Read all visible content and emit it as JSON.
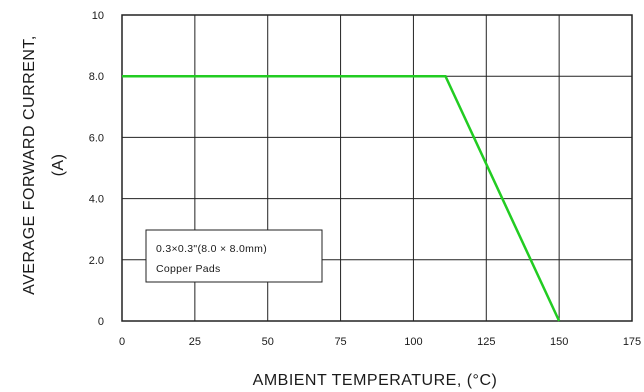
{
  "chart_data": {
    "type": "line",
    "title": "",
    "xlabel": "AMBIENT TEMPERATURE, (°C)",
    "ylabel_lines": [
      "AVERAGE FORWARD CURRENT,",
      "(A)"
    ],
    "xlim": [
      0,
      175
    ],
    "ylim": [
      0,
      10
    ],
    "x_ticks": [
      {
        "value": 0,
        "label": "0"
      },
      {
        "value": 25,
        "label": "25"
      },
      {
        "value": 50,
        "label": "50"
      },
      {
        "value": 75,
        "label": "75"
      },
      {
        "value": 100,
        "label": "100"
      },
      {
        "value": 125,
        "label": "125"
      },
      {
        "value": 150,
        "label": "150"
      },
      {
        "value": 175,
        "label": "175"
      }
    ],
    "y_ticks": [
      {
        "value": 0,
        "label": "0"
      },
      {
        "value": 2,
        "label": "2.0"
      },
      {
        "value": 4,
        "label": "4.0"
      },
      {
        "value": 6,
        "label": "6.0"
      },
      {
        "value": 8,
        "label": "8.0"
      },
      {
        "value": 10,
        "label": "10"
      }
    ],
    "grid": true,
    "series": [
      {
        "color": "#22cc22",
        "x": [
          0,
          111,
          150
        ],
        "y": [
          8,
          8,
          0
        ]
      }
    ],
    "annotation": {
      "lines": [
        "0.3×0.3\"(8.0 × 8.0mm)",
        "Copper Pads"
      ]
    }
  }
}
